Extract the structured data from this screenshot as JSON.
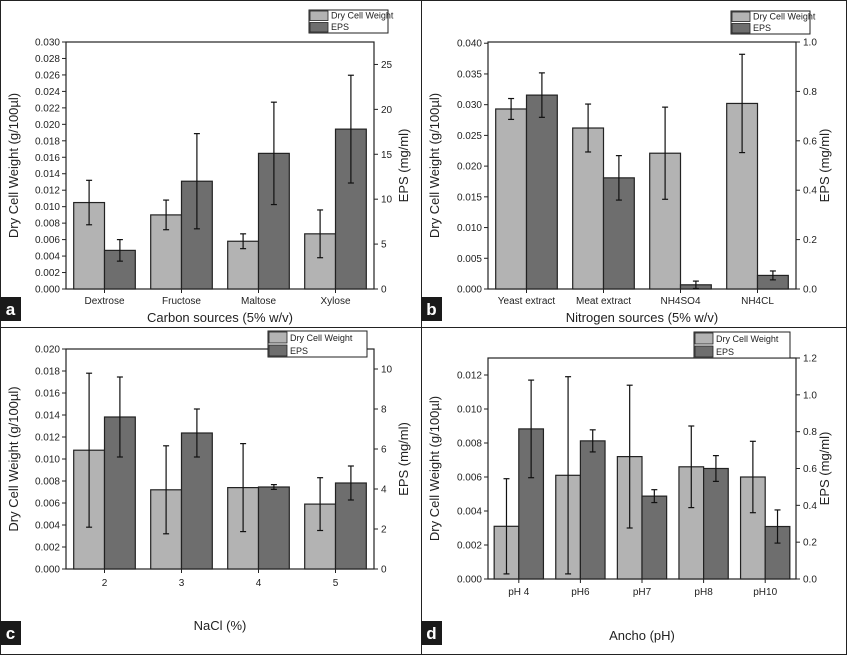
{
  "figure": {
    "colors": {
      "dry_cell_weight": "#b3b3b3",
      "eps": "#6e6e6e",
      "panel_tag_bg": "#1a1a1a"
    }
  },
  "chart_data": [
    {
      "panel": "a",
      "type": "bar",
      "xlabel": "Carbon sources (5% w/v)",
      "ylabel": "Dry Cell Weight (g/100µl)",
      "y2label": "EPS (mg/ml)",
      "categories": [
        "Dextrose",
        "Fructose",
        "Maltose",
        "Xylose"
      ],
      "ylim": [
        0,
        0.03
      ],
      "yticks": [
        "0.000",
        "0.002",
        "0.004",
        "0.006",
        "0.008",
        "0.010",
        "0.012",
        "0.014",
        "0.016",
        "0.018",
        "0.020",
        "0.022",
        "0.024",
        "0.026",
        "0.028",
        "0.030"
      ],
      "y2lim": [
        0,
        27.5
      ],
      "y2ticks": [
        "0",
        "5",
        "10",
        "15",
        "20",
        "25"
      ],
      "legend": {
        "position": "top-right-outside",
        "entries": [
          "Dry Cell Weight",
          "EPS"
        ]
      },
      "series": [
        {
          "name": "Dry Cell Weight",
          "axis": "left",
          "values": [
            0.0105,
            0.009,
            0.0058,
            0.0067
          ],
          "errors": [
            0.0027,
            0.0018,
            0.0009,
            0.0029
          ]
        },
        {
          "name": "EPS",
          "axis": "right",
          "values": [
            4.3,
            12.0,
            15.1,
            17.8
          ],
          "errors": [
            1.2,
            5.3,
            5.7,
            6.0
          ]
        }
      ]
    },
    {
      "panel": "b",
      "type": "bar",
      "xlabel": "Nitrogen sources (5% w/v)",
      "ylabel": "Dry Cell Weight (g/100µl)",
      "y2label": "EPS (mg/ml)",
      "categories": [
        "Yeast extract",
        "Meat extract",
        "NH4SO4",
        "NH4CL"
      ],
      "ylim": [
        0,
        0.0402
      ],
      "yticks": [
        "0.000",
        "0.005",
        "0.010",
        "0.015",
        "0.020",
        "0.025",
        "0.030",
        "0.035",
        "0.040"
      ],
      "y2lim": [
        0,
        1.0
      ],
      "y2ticks": [
        "0.0",
        "0.2",
        "0.4",
        "0.6",
        "0.8",
        "1.0"
      ],
      "legend": {
        "position": "top-right-outside",
        "entries": [
          "Dry Cell Weight",
          "EPS"
        ]
      },
      "series": [
        {
          "name": "Dry Cell Weight",
          "axis": "left",
          "values": [
            0.0293,
            0.0262,
            0.0221,
            0.0302
          ],
          "errors": [
            0.0017,
            0.0039,
            0.0075,
            0.008
          ]
        },
        {
          "name": "EPS",
          "axis": "right",
          "values": [
            0.785,
            0.45,
            0.017,
            0.055
          ],
          "errors": [
            0.09,
            0.09,
            0.015,
            0.018
          ]
        }
      ]
    },
    {
      "panel": "c",
      "type": "bar",
      "xlabel": "NaCl (%)",
      "ylabel": "Dry Cell Weight (g/100µl)",
      "y2label": "EPS (mg/ml)",
      "categories": [
        "2",
        "3",
        "4",
        "5"
      ],
      "ylim": [
        0,
        0.02
      ],
      "yticks": [
        "0.000",
        "0.002",
        "0.004",
        "0.006",
        "0.008",
        "0.010",
        "0.012",
        "0.014",
        "0.016",
        "0.018",
        "0.020"
      ],
      "y2lim": [
        0,
        11
      ],
      "y2ticks": [
        "0",
        "2",
        "4",
        "6",
        "8",
        "10"
      ],
      "legend": {
        "position": "top-right",
        "entries": [
          "Dry Cell Weight",
          "EPS"
        ]
      },
      "series": [
        {
          "name": "Dry Cell Weight",
          "axis": "left",
          "values": [
            0.0108,
            0.0072,
            0.0074,
            0.0059
          ],
          "errors": [
            0.007,
            0.004,
            0.004,
            0.0024
          ]
        },
        {
          "name": "EPS",
          "axis": "right",
          "values": [
            7.6,
            6.8,
            4.1,
            4.3
          ],
          "errors": [
            2.0,
            1.2,
            0.12,
            0.85
          ]
        }
      ]
    },
    {
      "panel": "d",
      "type": "bar",
      "xlabel": "Ancho (pH)",
      "ylabel": "Dry Cell Weight (g/100µl)",
      "y2label": "EPS (mg/ml)",
      "categories": [
        "pH 4",
        "pH6",
        "pH7",
        "pH8",
        "pH10"
      ],
      "ylim": [
        0,
        0.013
      ],
      "yticks": [
        "0.000",
        "0.002",
        "0.004",
        "0.006",
        "0.008",
        "0.010",
        "0.012"
      ],
      "y2lim": [
        0,
        1.2
      ],
      "y2ticks": [
        "0.0",
        "0.2",
        "0.4",
        "0.6",
        "0.8",
        "1.0",
        "1.2"
      ],
      "legend": {
        "position": "top-right",
        "entries": [
          "Dry Cell Weight",
          "EPS"
        ]
      },
      "series": [
        {
          "name": "Dry Cell Weight",
          "axis": "left",
          "values": [
            0.0031,
            0.0061,
            0.0072,
            0.0066,
            0.006
          ],
          "errors": [
            0.0028,
            0.0058,
            0.0042,
            0.0024,
            0.0021
          ]
        },
        {
          "name": "EPS",
          "axis": "right",
          "values": [
            0.815,
            0.75,
            0.45,
            0.6,
            0.285
          ],
          "errors": [
            0.265,
            0.06,
            0.035,
            0.07,
            0.09
          ]
        }
      ]
    }
  ]
}
